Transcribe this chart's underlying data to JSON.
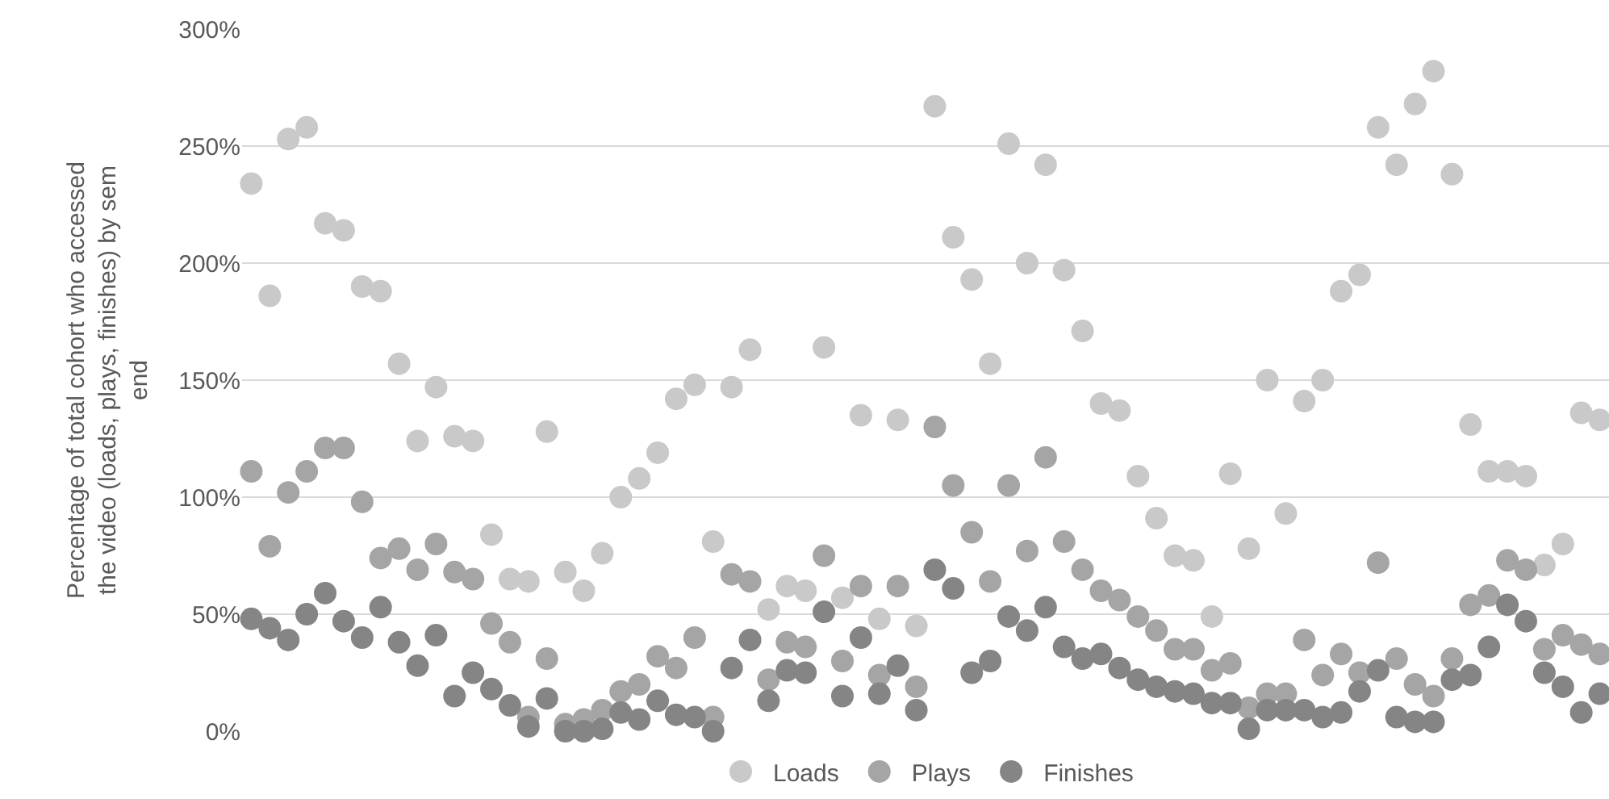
{
  "chart_data": {
    "type": "scatter",
    "ylabel": "Percentage of total cohort who accessed the video (loads, plays, finishes) by sem end",
    "categories": [
      null,
      null,
      null,
      null,
      null,
      null,
      null,
      null,
      null,
      null,
      null,
      null,
      null,
      null,
      null,
      null,
      null,
      null,
      null,
      null,
      null,
      null,
      null,
      null,
      null,
      null,
      null,
      null,
      null,
      null,
      null,
      null,
      null,
      null,
      null,
      null,
      null,
      null,
      null,
      null,
      null,
      null,
      null,
      null,
      null,
      null,
      null,
      null,
      null,
      null,
      null,
      null,
      null,
      null,
      null,
      null,
      null,
      null,
      null,
      null,
      null,
      null,
      null,
      null,
      null,
      null,
      null,
      null,
      null,
      null,
      null,
      null,
      null,
      null
    ],
    "series": [
      {
        "name": "Loads",
        "color": "#c9c9c9",
        "values": [
          234,
          186,
          253,
          258,
          217,
          214,
          190,
          188,
          157,
          124,
          147,
          126,
          124,
          84,
          65,
          64,
          128,
          68,
          60,
          76,
          100,
          108,
          119,
          142,
          148,
          81,
          147,
          163,
          52,
          62,
          60,
          164,
          57,
          135,
          48,
          133,
          45,
          267,
          211,
          193,
          157,
          251,
          200,
          242,
          197,
          171,
          140,
          137,
          109,
          91,
          75,
          73,
          49,
          110,
          78,
          150,
          93,
          141,
          150,
          188,
          195,
          258,
          242,
          268,
          282,
          238,
          131,
          111,
          111,
          109,
          71,
          80,
          136,
          133
        ]
      },
      {
        "name": "Plays",
        "color": "#a5a5a5",
        "values": [
          111,
          79,
          102,
          111,
          121,
          121,
          98,
          74,
          78,
          69,
          80,
          68,
          65,
          46,
          38,
          6,
          31,
          3,
          5,
          9,
          17,
          20,
          32,
          27,
          40,
          6,
          67,
          64,
          22,
          38,
          36,
          75,
          30,
          62,
          24,
          62,
          19,
          130,
          105,
          85,
          64,
          105,
          77,
          117,
          81,
          69,
          60,
          56,
          49,
          43,
          35,
          35,
          26,
          29,
          10,
          16,
          16,
          39,
          24,
          33,
          25,
          72,
          31,
          20,
          15,
          31,
          54,
          58,
          73,
          69,
          35,
          41,
          37,
          33
        ]
      },
      {
        "name": "Finishes",
        "color": "#858585",
        "values": [
          48,
          44,
          39,
          50,
          59,
          47,
          40,
          53,
          38,
          28,
          41,
          15,
          25,
          18,
          11,
          2,
          14,
          0,
          0,
          1,
          8,
          5,
          13,
          7,
          6,
          0,
          27,
          39,
          13,
          26,
          25,
          51,
          15,
          40,
          16,
          28,
          9,
          69,
          61,
          25,
          30,
          49,
          43,
          53,
          36,
          31,
          33,
          27,
          22,
          19,
          17,
          16,
          12,
          12,
          1,
          9,
          9,
          9,
          6,
          8,
          17,
          26,
          6,
          4,
          4,
          22,
          24,
          36,
          54,
          47,
          25,
          19,
          8,
          16
        ]
      }
    ],
    "ylim": [
      0,
      300
    ],
    "yticks": [
      {
        "value": 0,
        "label": "0%"
      },
      {
        "value": 50,
        "label": "50%"
      },
      {
        "value": 100,
        "label": "100%"
      },
      {
        "value": 150,
        "label": "150%"
      },
      {
        "value": 200,
        "label": "200%"
      },
      {
        "value": 250,
        "label": "250%"
      },
      {
        "value": 300,
        "label": "300%"
      }
    ],
    "grid": "y",
    "legend": "bottom",
    "marker": "circle"
  }
}
